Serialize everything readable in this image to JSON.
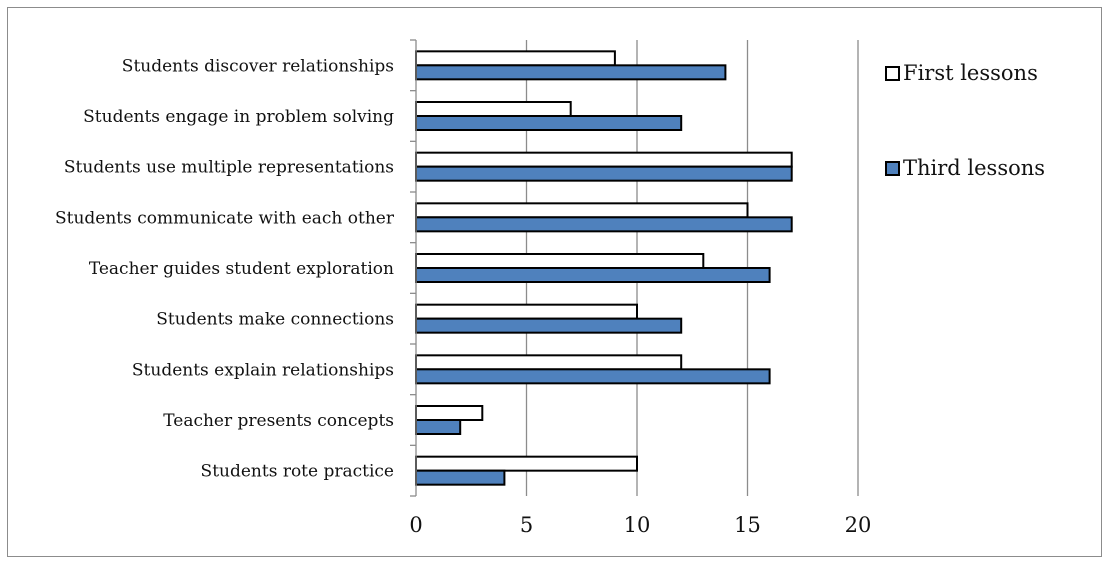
{
  "chart_data": {
    "type": "bar",
    "orientation": "horizontal",
    "categories": [
      "Students discover relationships",
      "Students engage in problem solving",
      "Students use multiple representations",
      "Students communicate with each other",
      "Teacher guides student exploration",
      "Students make connections",
      "Students explain relationships",
      "Teacher presents concepts",
      "Students rote practice"
    ],
    "series": [
      {
        "name": "First lessons",
        "color": "#ffffff",
        "values": [
          9,
          7,
          17,
          15,
          13,
          10,
          12,
          3,
          10
        ]
      },
      {
        "name": "Third lessons",
        "color": "#4f81bd",
        "values": [
          14,
          12,
          17,
          17,
          16,
          12,
          16,
          2,
          4
        ]
      }
    ],
    "xlim": [
      0,
      20
    ],
    "xticks": [
      "0",
      "5",
      "10",
      "15",
      "20"
    ],
    "grid": "vertical",
    "legend_position": "right"
  }
}
